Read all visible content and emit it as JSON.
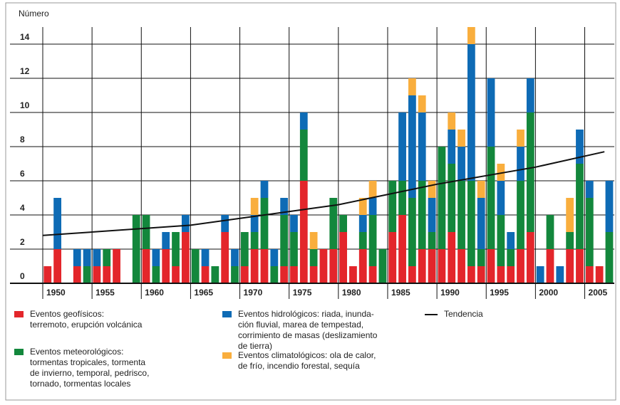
{
  "chart_data": {
    "type": "bar",
    "stacked": true,
    "ylabel": "Número",
    "x": [
      1950,
      1951,
      1952,
      1953,
      1954,
      1955,
      1956,
      1957,
      1958,
      1959,
      1960,
      1961,
      1962,
      1963,
      1964,
      1965,
      1966,
      1967,
      1968,
      1969,
      1970,
      1971,
      1972,
      1973,
      1974,
      1975,
      1976,
      1977,
      1978,
      1979,
      1980,
      1981,
      1982,
      1983,
      1984,
      1985,
      1986,
      1987,
      1988,
      1989,
      1990,
      1991,
      1992,
      1993,
      1994,
      1995,
      1996,
      1997,
      1998,
      1999,
      2000,
      2001,
      2002,
      2003,
      2004,
      2005,
      2006,
      2007
    ],
    "xlim": [
      1950,
      2008
    ],
    "xticks": [
      1950,
      1955,
      1960,
      1965,
      1970,
      1975,
      1980,
      1985,
      1990,
      1995,
      2000,
      2005
    ],
    "ylim": [
      0,
      15
    ],
    "yticks": [
      0,
      2,
      4,
      6,
      8,
      10,
      12,
      14
    ],
    "grid": true,
    "series": [
      {
        "name": "Eventos geofísicos:\nterremoto, erupción volcánica",
        "color": "#e3262b",
        "values": [
          1,
          2,
          0,
          1,
          0,
          1,
          1,
          2,
          0,
          0,
          2,
          0,
          2,
          1,
          3,
          0,
          1,
          0,
          3,
          0,
          1,
          2,
          2,
          0,
          1,
          1,
          6,
          1,
          2,
          2,
          3,
          1,
          2,
          1,
          0,
          3,
          4,
          1,
          2,
          2,
          2,
          3,
          2,
          1,
          1,
          2,
          1,
          1,
          2,
          3,
          0,
          2,
          0,
          2,
          2,
          1,
          1,
          0
        ]
      },
      {
        "name": "Eventos meteorológicos:\ntormentas tropicales, tormenta\nde invierno, temporal, pedrisco,\ntornado, tormentas locales",
        "color": "#13873c",
        "values": [
          0,
          0,
          0,
          0,
          1,
          0,
          1,
          0,
          0,
          4,
          2,
          1,
          0,
          2,
          0,
          2,
          0,
          1,
          0,
          1,
          2,
          1,
          3,
          1,
          3,
          2,
          3,
          1,
          0,
          3,
          1,
          0,
          1,
          3,
          2,
          3,
          2,
          4,
          4,
          1,
          6,
          4,
          4,
          5,
          1,
          6,
          3,
          1,
          4,
          7,
          0,
          2,
          0,
          1,
          5,
          4,
          0,
          3
        ]
      },
      {
        "name": "Eventos hidrológicos: riada, inunda-\nción fluvial, marea de tempestad,\ncorrimiento de masas (deslizamiento\nde tierra)",
        "color": "#0e6bb5",
        "values": [
          0,
          3,
          0,
          1,
          1,
          1,
          0,
          0,
          0,
          0,
          0,
          1,
          1,
          0,
          1,
          0,
          1,
          0,
          1,
          1,
          0,
          1,
          1,
          1,
          1,
          1,
          1,
          0,
          0,
          0,
          0,
          0,
          1,
          1,
          0,
          0,
          4,
          6,
          4,
          2,
          0,
          2,
          2,
          8,
          3,
          4,
          2,
          1,
          2,
          2,
          1,
          0,
          1,
          0,
          2,
          1,
          0,
          3
        ]
      },
      {
        "name": "Eventos climatológicos: ola de calor,\nde frío, incendio forestal, sequía",
        "color": "#f9ae3d",
        "values": [
          0,
          0,
          0,
          0,
          0,
          0,
          0,
          0,
          0,
          0,
          0,
          0,
          0,
          0,
          0,
          0,
          0,
          0,
          0,
          0,
          0,
          1,
          0,
          0,
          0,
          0,
          0,
          1,
          0,
          0,
          0,
          0,
          1,
          1,
          0,
          0,
          0,
          1,
          1,
          1,
          0,
          1,
          1,
          1,
          1,
          0,
          1,
          0,
          1,
          0,
          0,
          0,
          0,
          2,
          0,
          0,
          0,
          0
        ]
      }
    ],
    "trend": {
      "name": "Tendencia",
      "color": "#111111",
      "x": [
        1950,
        1965,
        1980,
        1990,
        2000,
        2007
      ],
      "values": [
        2.8,
        3.4,
        4.6,
        5.8,
        6.8,
        7.7
      ]
    }
  }
}
